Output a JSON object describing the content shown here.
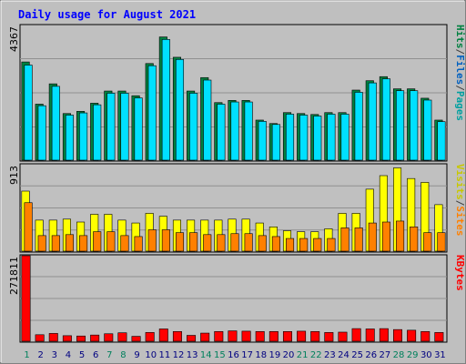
{
  "chart_data": [
    {
      "type": "bar",
      "title": "Daily usage for August 2021",
      "categories": [
        "1",
        "2",
        "3",
        "4",
        "5",
        "6",
        "7",
        "8",
        "9",
        "10",
        "11",
        "12",
        "13",
        "14",
        "15",
        "16",
        "17",
        "18",
        "19",
        "20",
        "21",
        "22",
        "23",
        "24",
        "25",
        "26",
        "27",
        "28",
        "29",
        "30",
        "31"
      ],
      "weekend_days": [
        "1",
        "7",
        "8",
        "14",
        "15",
        "21",
        "22",
        "28",
        "29"
      ],
      "ylim": [
        0,
        4367
      ],
      "ytick_label": "4367",
      "legend": [
        "Pages",
        "/",
        "Files",
        "/",
        "Hits"
      ],
      "series": [
        {
          "name": "Hits",
          "color": "#008040",
          "values": [
            3200,
            1850,
            2500,
            1550,
            1620,
            1880,
            2270,
            2270,
            2120,
            3150,
            4000,
            3350,
            2270,
            2700,
            1900,
            1970,
            1970,
            1340,
            1230,
            1580,
            1550,
            1520,
            1580,
            1580,
            2300,
            2600,
            2730,
            2340,
            2340,
            2040,
            1340
          ]
        },
        {
          "name": "Files",
          "color": "#00e0ff",
          "values": [
            3100,
            1800,
            2420,
            1500,
            1570,
            1830,
            2200,
            2200,
            2050,
            3080,
            3920,
            3280,
            2200,
            2620,
            1850,
            1920,
            1920,
            1300,
            1200,
            1530,
            1500,
            1470,
            1530,
            1530,
            2230,
            2530,
            2660,
            2280,
            2280,
            1980,
            1290
          ]
        }
      ]
    },
    {
      "type": "bar",
      "ylim": [
        0,
        913
      ],
      "ytick_label": "913",
      "legend": [
        "Sites",
        "/",
        "Visits"
      ],
      "series": [
        {
          "name": "Visits",
          "color": "#ffff00",
          "values": [
            640,
            340,
            340,
            350,
            320,
            400,
            400,
            340,
            310,
            410,
            380,
            340,
            340,
            340,
            340,
            350,
            350,
            310,
            270,
            230,
            220,
            220,
            250,
            410,
            410,
            660,
            800,
            880,
            770,
            730,
            500
          ]
        },
        {
          "name": "Sites",
          "color": "#ff8000",
          "values": [
            520,
            180,
            180,
            190,
            180,
            220,
            220,
            180,
            170,
            240,
            240,
            210,
            210,
            190,
            190,
            200,
            200,
            180,
            170,
            150,
            150,
            150,
            150,
            260,
            260,
            310,
            320,
            330,
            270,
            210,
            210
          ]
        }
      ]
    },
    {
      "type": "bar",
      "ylim": [
        0,
        271811
      ],
      "ytick_label": "271811",
      "legend": [
        "KBytes"
      ],
      "series": [
        {
          "name": "KBytes",
          "color": "#ff0000",
          "values": [
            271811,
            26000,
            30000,
            23000,
            22000,
            25000,
            29000,
            32000,
            21000,
            33000,
            44000,
            36000,
            24000,
            31000,
            36000,
            38000,
            37000,
            36000,
            36000,
            36000,
            37000,
            36000,
            33000,
            34000,
            45000,
            44000,
            45000,
            42000,
            40000,
            36000,
            33000
          ]
        }
      ]
    }
  ],
  "colors": {
    "plot_bg": "#c0c0c0",
    "frame": "#bfbfbf",
    "title": "#0000ff",
    "weekday_label": "#000080",
    "weekend_label": "#00805c",
    "grid": "#909090"
  }
}
